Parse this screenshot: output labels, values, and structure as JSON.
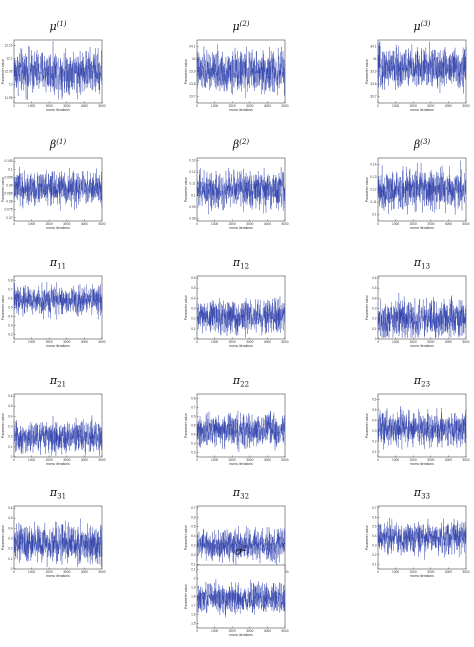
{
  "chart_data": [
    {
      "type": "line",
      "title": "μ(1)",
      "ylabel": "Parameter value",
      "xlabel": "mcmc iterations",
      "x_ticks": [
        "0",
        "1000",
        "2000",
        "3000",
        "4000",
        "5000"
      ],
      "y_ticks": [
        "11.95",
        "12",
        "12.05",
        "12.1",
        "12.15"
      ],
      "xlim": [
        0,
        5000
      ],
      "ylim": [
        11.93,
        12.17
      ],
      "trace": {
        "iterations": 5000,
        "center": 12.05,
        "spread": 0.04
      }
    },
    {
      "type": "line",
      "title": "μ(2)",
      "ylabel": "Parameter value",
      "xlabel": "mcmc iterations",
      "x_ticks": [
        "0",
        "1000",
        "2000",
        "3000",
        "4000",
        "5000"
      ],
      "y_ticks": [
        "23.7",
        "23.8",
        "23.9",
        "24",
        "24.1"
      ],
      "xlim": [
        0,
        5000
      ],
      "ylim": [
        23.65,
        24.15
      ],
      "trace": {
        "iterations": 5000,
        "center": 23.9,
        "spread": 0.08
      }
    },
    {
      "type": "line",
      "title": "μ(3)",
      "ylabel": "Parameter value",
      "xlabel": "mcmc iterations",
      "x_ticks": [
        "0",
        "1000",
        "2000",
        "3000",
        "4000",
        "5000"
      ],
      "y_ticks": [
        "33.7",
        "33.8",
        "33.9",
        "34",
        "34.1"
      ],
      "xlim": [
        0,
        5000
      ],
      "ylim": [
        33.65,
        34.15
      ],
      "trace": {
        "iterations": 5000,
        "center": 33.93,
        "spread": 0.08
      }
    },
    {
      "type": "line",
      "title": "β(1)",
      "ylabel": "Parameter value",
      "xlabel": "mcmc iterations",
      "x_ticks": [
        "0",
        "1000",
        "2000",
        "3000",
        "4000",
        "5000"
      ],
      "y_ticks": [
        "0.07",
        "0.075",
        "0.08",
        "0.085",
        "0.09",
        "0.095",
        "0.1",
        "0.105"
      ],
      "xlim": [
        0,
        5000
      ],
      "ylim": [
        0.068,
        0.107
      ],
      "trace": {
        "iterations": 5000,
        "center": 0.088,
        "spread": 0.005
      }
    },
    {
      "type": "line",
      "title": "β(2)",
      "ylabel": "Parameter value",
      "xlabel": "mcmc iterations",
      "x_ticks": [
        "0",
        "1000",
        "2000",
        "3000",
        "4000",
        "5000"
      ],
      "y_ticks": [
        "0.08",
        "0.09",
        "0.1",
        "0.11",
        "0.12",
        "0.13"
      ],
      "xlim": [
        0,
        5000
      ],
      "ylim": [
        0.078,
        0.132
      ],
      "trace": {
        "iterations": 5000,
        "center": 0.105,
        "spread": 0.008
      }
    },
    {
      "type": "line",
      "title": "β(3)",
      "ylabel": "Parameter value",
      "xlabel": "mcmc iterations",
      "x_ticks": [
        "0",
        "1000",
        "2000",
        "3000",
        "4000",
        "5000"
      ],
      "y_ticks": [
        "0.1",
        "0.11",
        "0.12",
        "0.13",
        "0.14"
      ],
      "xlim": [
        0,
        5000
      ],
      "ylim": [
        0.095,
        0.145
      ],
      "trace": {
        "iterations": 5000,
        "center": 0.12,
        "spread": 0.008
      }
    },
    {
      "type": "line",
      "title": "π11",
      "ylabel": "Parameter value",
      "xlabel": "mcmc iterations",
      "x_ticks": [
        "0",
        "1000",
        "2000",
        "3000",
        "4000",
        "5000"
      ],
      "y_ticks": [
        "0.2",
        "0.3",
        "0.4",
        "0.5",
        "0.6",
        "0.7",
        "0.8"
      ],
      "xlim": [
        0,
        5000
      ],
      "ylim": [
        0.15,
        0.85
      ],
      "trace": {
        "iterations": 5000,
        "center": 0.58,
        "spread": 0.08
      }
    },
    {
      "type": "line",
      "title": "π12",
      "ylabel": "Parameter value",
      "xlabel": "mcmc iterations",
      "x_ticks": [
        "0",
        "1000",
        "2000",
        "3000",
        "4000",
        "5000"
      ],
      "y_ticks": [
        "0",
        "0.1",
        "0.2",
        "0.3",
        "0.4",
        "0.5",
        "0.6"
      ],
      "xlim": [
        0,
        5000
      ],
      "ylim": [
        0,
        0.62
      ],
      "trace": {
        "iterations": 5000,
        "center": 0.22,
        "spread": 0.08
      }
    },
    {
      "type": "line",
      "title": "π13",
      "ylabel": "Parameter value",
      "xlabel": "mcmc iterations",
      "x_ticks": [
        "0",
        "1000",
        "2000",
        "3000",
        "4000",
        "5000"
      ],
      "y_ticks": [
        "0",
        "0.1",
        "0.2",
        "0.3",
        "0.4",
        "0.5",
        "0.6"
      ],
      "xlim": [
        0,
        5000
      ],
      "ylim": [
        0,
        0.62
      ],
      "trace": {
        "iterations": 5000,
        "center": 0.2,
        "spread": 0.09
      }
    },
    {
      "type": "line",
      "title": "π21",
      "ylabel": "Parameter value",
      "xlabel": "mcmc iterations",
      "x_ticks": [
        "0",
        "1000",
        "2000",
        "3000",
        "4000",
        "5000"
      ],
      "y_ticks": [
        "0",
        "0.1",
        "0.2",
        "0.3",
        "0.4",
        "0.5",
        "0.6"
      ],
      "xlim": [
        0,
        5000
      ],
      "ylim": [
        0,
        0.62
      ],
      "trace": {
        "iterations": 5000,
        "center": 0.2,
        "spread": 0.08
      }
    },
    {
      "type": "line",
      "title": "π22",
      "ylabel": "Parameter value",
      "xlabel": "mcmc iterations",
      "x_ticks": [
        "0",
        "1000",
        "2000",
        "3000",
        "4000",
        "5000"
      ],
      "y_ticks": [
        "0.2",
        "0.3",
        "0.4",
        "0.5",
        "0.6",
        "0.7",
        "0.8"
      ],
      "xlim": [
        0,
        5000
      ],
      "ylim": [
        0.15,
        0.85
      ],
      "trace": {
        "iterations": 5000,
        "center": 0.45,
        "spread": 0.09
      }
    },
    {
      "type": "line",
      "title": "π23",
      "ylabel": "Parameter value",
      "xlabel": "mcmc iterations",
      "x_ticks": [
        "0",
        "1000",
        "2000",
        "3000",
        "4000",
        "5000"
      ],
      "y_ticks": [
        "0.1",
        "0.2",
        "0.3",
        "0.4",
        "0.5",
        "0.6"
      ],
      "xlim": [
        0,
        5000
      ],
      "ylim": [
        0.05,
        0.65
      ],
      "trace": {
        "iterations": 5000,
        "center": 0.32,
        "spread": 0.08
      }
    },
    {
      "type": "line",
      "title": "π31",
      "ylabel": "Parameter value",
      "xlabel": "mcmc iterations",
      "x_ticks": [
        "0",
        "1000",
        "2000",
        "3000",
        "4000",
        "5000"
      ],
      "y_ticks": [
        "0",
        "0.1",
        "0.2",
        "0.3",
        "0.4",
        "0.5",
        "0.6"
      ],
      "xlim": [
        0,
        5000
      ],
      "ylim": [
        0,
        0.62
      ],
      "trace": {
        "iterations": 5000,
        "center": 0.25,
        "spread": 0.09
      }
    },
    {
      "type": "line",
      "title": "π32",
      "ylabel": "Parameter value",
      "xlabel": "mcmc iterations",
      "x_ticks": [
        "0",
        "1000",
        "2000",
        "3000",
        "4000",
        "5000"
      ],
      "y_ticks": [
        "0.1",
        "0.2",
        "0.3",
        "0.4",
        "0.5",
        "0.6",
        "0.7"
      ],
      "xlim": [
        0,
        5000
      ],
      "ylim": [
        0.05,
        0.72
      ],
      "trace": {
        "iterations": 5000,
        "center": 0.3,
        "spread": 0.08
      }
    },
    {
      "type": "line",
      "title": "π33",
      "ylabel": "Parameter value",
      "xlabel": "mcmc iterations",
      "x_ticks": [
        "0",
        "1000",
        "2000",
        "3000",
        "4000",
        "5000"
      ],
      "y_ticks": [
        "0.1",
        "0.2",
        "0.3",
        "0.4",
        "0.5",
        "0.6",
        "0.7"
      ],
      "xlim": [
        0,
        5000
      ],
      "ylim": [
        0.05,
        0.72
      ],
      "trace": {
        "iterations": 5000,
        "center": 0.38,
        "spread": 0.08
      }
    },
    {
      "type": "line",
      "title": "σ2",
      "ylabel": "Parameter value",
      "xlabel": "mcmc iterations",
      "x_ticks": [
        "0",
        "1000",
        "2000",
        "3000",
        "4000",
        "5000"
      ],
      "y_ticks": [
        "1.5",
        "1.6",
        "1.7",
        "1.8",
        "1.9",
        "2",
        "2.1"
      ],
      "xlim": [
        0,
        5000
      ],
      "ylim": [
        1.45,
        2.15
      ],
      "trace": {
        "iterations": 5000,
        "center": 1.78,
        "spread": 0.08
      }
    }
  ],
  "style": {
    "trace_color": "#2336a8",
    "axis_color": "#222222",
    "text_color": "#111111"
  }
}
